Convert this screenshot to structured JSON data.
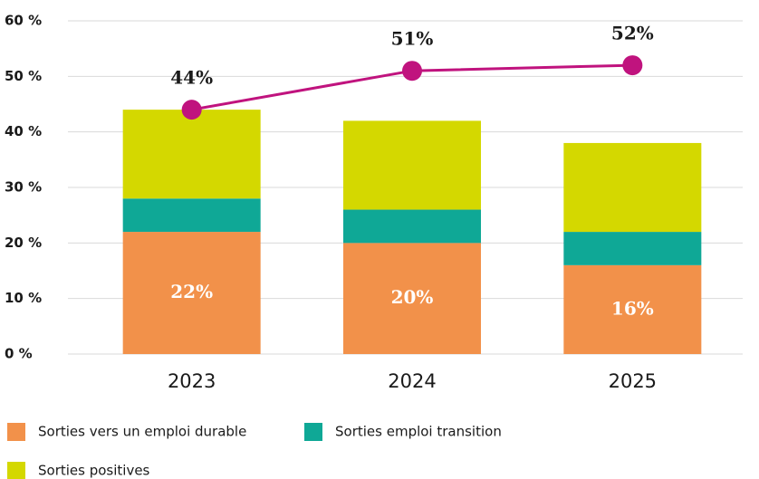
{
  "chart_data": {
    "type": "bar",
    "stacked": true,
    "categories": [
      "2023",
      "2024",
      "2025"
    ],
    "series": [
      {
        "name": "Sorties vers un emploi durable",
        "color": "#f2914a",
        "values": [
          22,
          20,
          16
        ],
        "value_labels": [
          "22%",
          "20%",
          "16%"
        ]
      },
      {
        "name": "Sorties emploi transition",
        "color": "#0fa896",
        "values": [
          6,
          6,
          6
        ]
      },
      {
        "name": "Sorties positives",
        "color": "#d4d800",
        "values": [
          16,
          16,
          16
        ]
      }
    ],
    "line": {
      "color": "#c0137e",
      "values": [
        44,
        51,
        52
      ],
      "value_labels": [
        "44%",
        "51%",
        "52%"
      ]
    },
    "ylim": [
      0,
      60
    ],
    "yticks": [
      {
        "value": 0,
        "label": "0 %"
      },
      {
        "value": 10,
        "label": "10 %"
      },
      {
        "value": 20,
        "label": "20 %"
      },
      {
        "value": 30,
        "label": "30 %"
      },
      {
        "value": 40,
        "label": "40 %"
      },
      {
        "value": 50,
        "label": "50 %"
      },
      {
        "value": 60,
        "label": "60 %"
      }
    ],
    "grid": true
  }
}
